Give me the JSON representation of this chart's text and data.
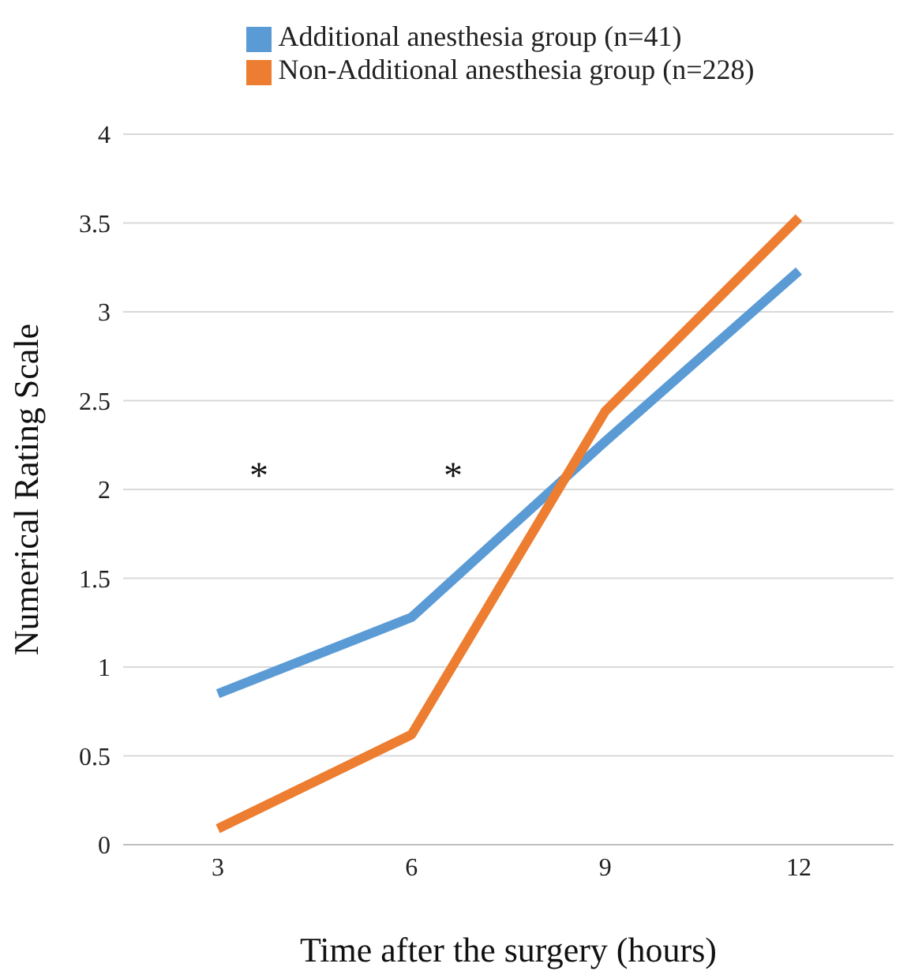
{
  "chart_data": {
    "type": "line",
    "xlabel": "Time after the surgery (hours)",
    "ylabel": "Numerical Rating Scale",
    "categories": [
      "3",
      "6",
      "9",
      "12"
    ],
    "series": [
      {
        "name": "Additional anesthesia group (n=41)",
        "color": "#5b9bd5",
        "values": [
          0.85,
          1.28,
          2.27,
          3.23
        ]
      },
      {
        "name": "Non-Additional anesthesia group (n=228)",
        "color": "#ed7d31",
        "values": [
          0.09,
          0.62,
          2.44,
          3.53
        ]
      }
    ],
    "ylim": [
      0,
      4
    ],
    "yticks": [
      0,
      0.5,
      1,
      1.5,
      2,
      2.5,
      3,
      3.5,
      4
    ],
    "grid": "y",
    "legend": "top",
    "marker": "none",
    "annotations": [
      "*",
      "*"
    ]
  }
}
